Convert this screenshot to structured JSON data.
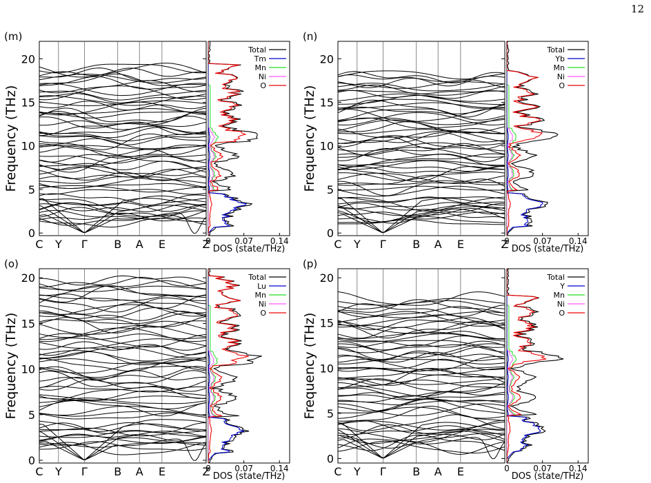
{
  "page_number": "12",
  "colors": {
    "Total": "#000000",
    "RE": "#0000cc",
    "Mn": "#22dd22",
    "Ni": "#ff55ff",
    "O": "#ee0000"
  },
  "chart_data": [
    {
      "panel": "(m)",
      "type": "line",
      "band_structure": {
        "ylabel": "Frequency (THz)",
        "ylim": [
          -0.3,
          22
        ],
        "yticks": [
          0,
          5,
          10,
          15,
          20
        ],
        "kpoints": [
          "C",
          "Y",
          "Γ",
          "B",
          "A",
          "E",
          "Z"
        ],
        "max_freq": 19.0,
        "seed": 11,
        "acoustic_dip_near_end": true
      },
      "dos": {
        "xlabel": "DOS (state/THz)",
        "xticks": [
          "0",
          "0.07",
          "0.14"
        ],
        "xlim": [
          0,
          0.16
        ],
        "legend": [
          "Total",
          "Tm",
          "Mn",
          "Ni",
          "O"
        ],
        "seed": 31
      }
    },
    {
      "panel": "(n)",
      "type": "line",
      "band_structure": {
        "ylabel": "Frequency (THz)",
        "ylim": [
          -0.3,
          22
        ],
        "yticks": [
          0,
          5,
          10,
          15,
          20
        ],
        "kpoints": [
          "C",
          "Y",
          "Γ",
          "B",
          "A",
          "E",
          "Z"
        ],
        "max_freq": 18.2,
        "seed": 23,
        "acoustic_dip_near_end": false
      },
      "dos": {
        "xlabel": "DOS (state/THz)",
        "xticks": [
          "0",
          "0.07",
          "0.14"
        ],
        "xlim": [
          0,
          0.16
        ],
        "legend": [
          "Total",
          "Yb",
          "Mn",
          "Ni",
          "O"
        ],
        "seed": 47
      }
    },
    {
      "panel": "(o)",
      "type": "line",
      "band_structure": {
        "ylabel": "Frequency (THz)",
        "ylim": [
          -0.3,
          21
        ],
        "yticks": [
          0,
          5,
          10,
          15,
          20
        ],
        "kpoints": [
          "C",
          "Y",
          "Γ",
          "B",
          "A",
          "E",
          "Z"
        ],
        "max_freq": 19.8,
        "seed": 37,
        "acoustic_dip_near_end": true
      },
      "dos": {
        "xlabel": "DOS (state/THz)",
        "xticks": [
          "0",
          "0.07",
          "0.14"
        ],
        "xlim": [
          0,
          0.16
        ],
        "legend": [
          "Total",
          "Lu",
          "Mn",
          "Ni",
          "O"
        ],
        "seed": 59
      }
    },
    {
      "panel": "(p)",
      "type": "line",
      "band_structure": {
        "ylabel": "Frequency (THz)",
        "ylim": [
          -0.5,
          21
        ],
        "yticks": [
          0,
          5,
          10,
          15,
          20
        ],
        "kpoints": [
          "C",
          "Y",
          "Γ",
          "B",
          "A",
          "E",
          ""
        ],
        "max_freq": 17.6,
        "seed": 41,
        "acoustic_dip_near_end": true
      },
      "dos": {
        "xlabel": "DOS (state/THz)",
        "xticks": [
          "0",
          "0.07",
          "0.14"
        ],
        "xlim": [
          0,
          0.16
        ],
        "legend": [
          "Total",
          "Y",
          "Mn",
          "Ni",
          "O"
        ],
        "seed": 71
      }
    }
  ]
}
